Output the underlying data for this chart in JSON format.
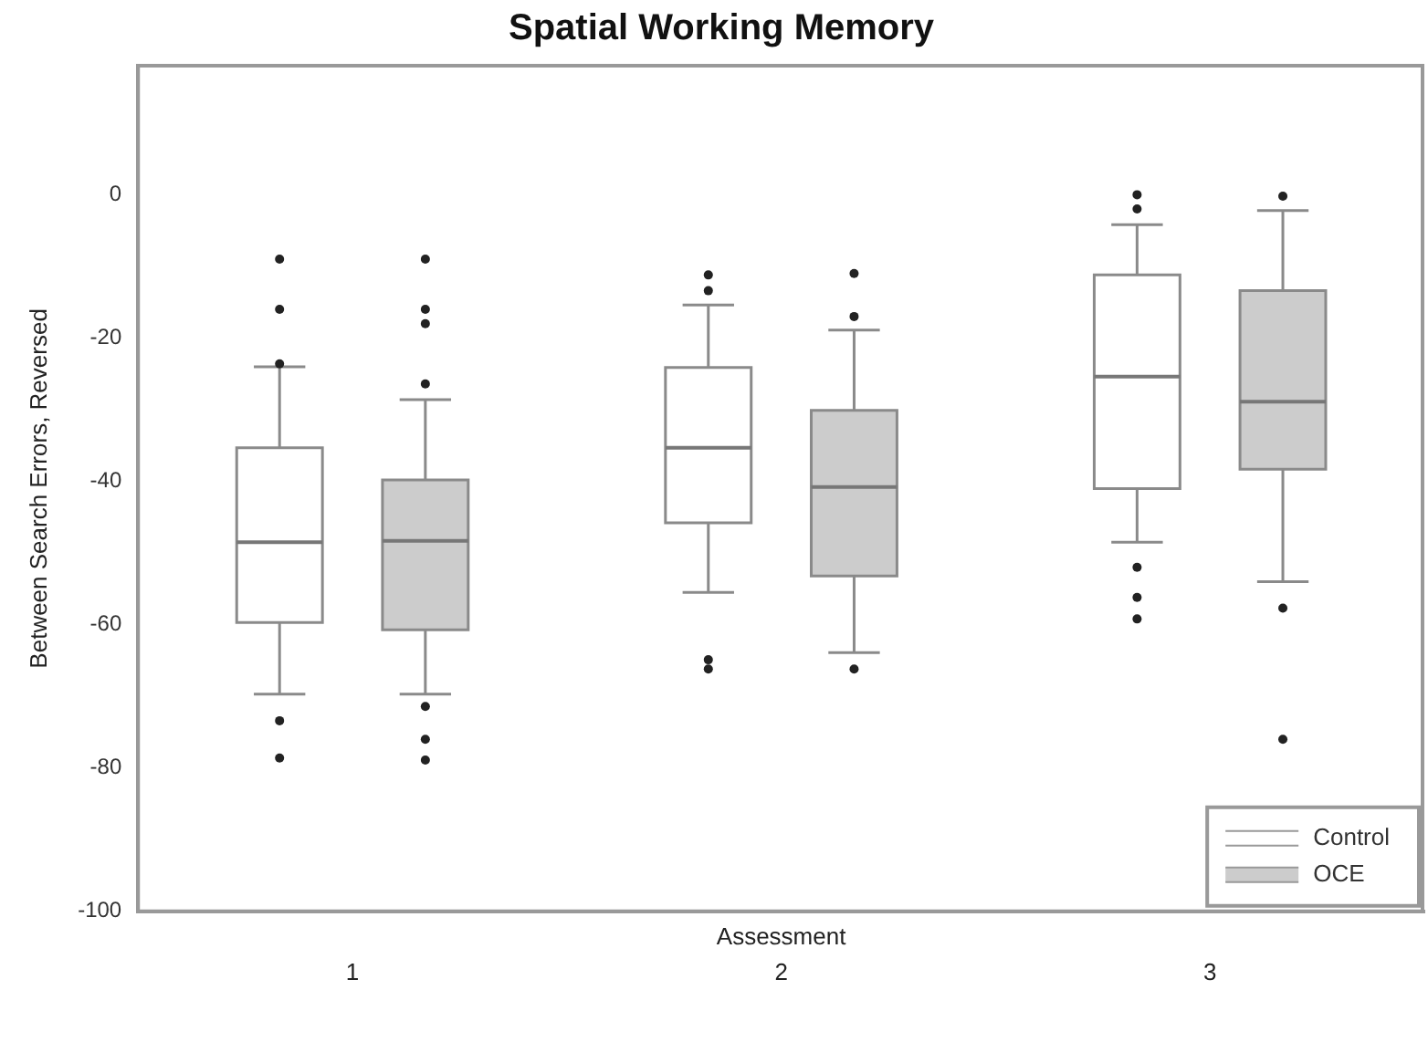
{
  "chart_data": {
    "type": "box",
    "title": "Spatial Working Memory",
    "xlabel": "Assessment",
    "ylabel": "Between Search Errors, Reversed",
    "categories": [
      "1",
      "2",
      "3"
    ],
    "ylim": [
      -100,
      18
    ],
    "yticks": [
      0,
      -20,
      -40,
      -60,
      -80,
      -100
    ],
    "grid": false,
    "legend": "bottom right",
    "marker": "circle",
    "series": [
      {
        "name": "Control",
        "color": "#ffffff",
        "boxes": [
          {
            "low": -69.7,
            "q1": -59.7,
            "median": -48.5,
            "q3": -35.3,
            "high": -24,
            "outliers": [
              -9,
              -16,
              -23.6,
              -73.4,
              -78.6
            ]
          },
          {
            "low": -55.5,
            "q1": -45.8,
            "median": -35.3,
            "q3": -24.1,
            "high": -15.4,
            "outliers": [
              -11.2,
              -13.4,
              -64.9,
              -66.2
            ]
          },
          {
            "low": -48.5,
            "q1": -41,
            "median": -25.4,
            "q3": -11.2,
            "high": -4.2,
            "outliers": [
              0,
              -2,
              -52,
              -56.2,
              -59.2
            ]
          }
        ]
      },
      {
        "name": "OCE",
        "color": "#cccccc",
        "boxes": [
          {
            "low": -69.7,
            "q1": -60.7,
            "median": -48.3,
            "q3": -39.8,
            "high": -28.6,
            "outliers": [
              -9,
              -16,
              -18,
              -26.4,
              -71.4,
              -76,
              -78.9
            ]
          },
          {
            "low": -63.9,
            "q1": -53.2,
            "median": -40.8,
            "q3": -30.1,
            "high": -18.9,
            "outliers": [
              -11,
              -17,
              -66.2
            ]
          },
          {
            "low": -54,
            "q1": -38.3,
            "median": -28.9,
            "q3": -13.4,
            "high": -2.2,
            "outliers": [
              -0.2,
              -57.7,
              -76
            ]
          }
        ]
      }
    ]
  }
}
